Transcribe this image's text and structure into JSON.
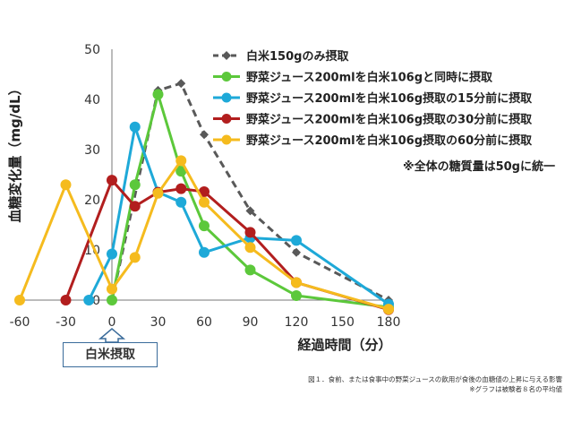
{
  "chart_data": {
    "type": "line",
    "xlabel": "経過時間（分）",
    "ylabel": "血糖変化量（mg/dL）",
    "xlim": [
      -60,
      180
    ],
    "ylim": [
      0,
      50
    ],
    "xticks": [
      -60,
      -30,
      0,
      30,
      60,
      90,
      120,
      150,
      180
    ],
    "yticks": [
      0,
      10,
      20,
      30,
      40,
      50
    ],
    "grid": false,
    "legend_position": "top-right",
    "series": [
      {
        "name": "白米150gのみ摂取",
        "color": "#595959",
        "style": "dashed",
        "marker": "diamond",
        "x": [
          0,
          30,
          45,
          60,
          90,
          120,
          180
        ],
        "y": [
          0,
          41.8,
          43.2,
          33,
          17.8,
          9.5,
          0
        ]
      },
      {
        "name": "野菜ジュース200mlを白米106gと同時に摂取",
        "color": "#5cc83b",
        "style": "solid",
        "marker": "circle",
        "x": [
          0,
          15,
          30,
          45,
          60,
          90,
          120,
          180
        ],
        "y": [
          0,
          23,
          41,
          25.7,
          14.8,
          6,
          0.9,
          -1.4
        ]
      },
      {
        "name": "野菜ジュース200mlを白米106g摂取の15分前に摂取",
        "color": "#1ea9d8",
        "style": "solid",
        "marker": "circle",
        "x": [
          -15,
          0,
          15,
          30,
          45,
          60,
          90,
          120,
          180
        ],
        "y": [
          0,
          9.2,
          34.5,
          21.5,
          19.5,
          9.5,
          12.4,
          11.9,
          -0.8
        ]
      },
      {
        "name": "野菜ジュース200mlを白米106g摂取の30分前に摂取",
        "color": "#b21e1e",
        "style": "solid",
        "marker": "circle",
        "x": [
          -30,
          0,
          15,
          30,
          45,
          60,
          90,
          120,
          180
        ],
        "y": [
          0,
          23.9,
          18.7,
          21.5,
          22.2,
          21.6,
          13.5,
          3.5,
          -1.9
        ]
      },
      {
        "name": "野菜ジュース200mlを白米106g摂取の60分前に摂取",
        "color": "#f5bb1e",
        "style": "solid",
        "marker": "circle",
        "x": [
          -60,
          -30,
          0,
          15,
          30,
          45,
          60,
          90,
          120,
          180
        ],
        "y": [
          0,
          23,
          2.2,
          8.5,
          21.3,
          27.8,
          19.5,
          10.5,
          3.5,
          -1.8
        ]
      }
    ],
    "annotation": "※全体の糖質量は50gに統一"
  },
  "rice_marker_label": "白米摂取",
  "caption_line1": "図１．食前、または食事中の野菜ジュースの飲用が食後の血糖値の上昇に与える影響",
  "caption_line2": "※グラフは被験者８名の平均値"
}
